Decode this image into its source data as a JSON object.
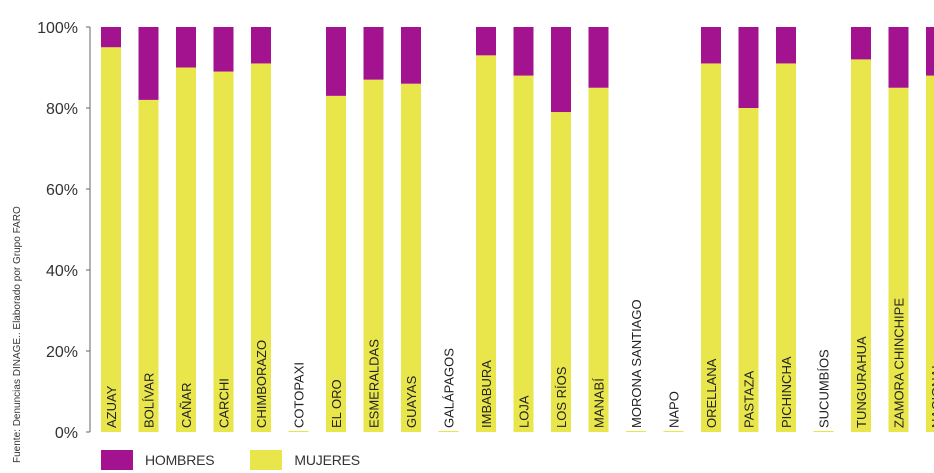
{
  "chart_data": {
    "type": "bar",
    "stacked": true,
    "percent": true,
    "ylim": [
      0,
      100
    ],
    "yticks": [
      "0%",
      "20%",
      "40%",
      "60%",
      "80%",
      "100%"
    ],
    "grid": false,
    "legend_position": "bottom-left",
    "categories": [
      "AZUAY",
      "BOLÍVAR",
      "CAÑAR",
      "CARCHI",
      "CHIMBORAZO",
      "COTOPAXI",
      "EL ORO",
      "ESMERALDAS",
      "GUAYAS",
      "GALÁPAGOS",
      "IMBABURA",
      "LOJA",
      "LOS RÍOS",
      "MANABÍ",
      "MORONA SANTIAGO",
      "NAPO",
      "ORELLANA",
      "PASTAZA",
      "PICHINCHA",
      "SUCUMBÍOS",
      "TUNGURAHUA",
      "ZAMORA CHINCHIPE",
      "NACIONAL"
    ],
    "series": [
      {
        "name": "MUJERES",
        "color": "#e9e64c",
        "values": [
          95,
          82,
          90,
          89,
          91,
          0,
          83,
          87,
          86,
          0,
          93,
          88,
          79,
          85,
          0,
          0,
          91,
          80,
          91,
          0,
          92,
          85,
          88
        ]
      },
      {
        "name": "HOMBRES",
        "color": "#a3138f",
        "values": [
          5,
          18,
          10,
          11,
          9,
          0,
          17,
          13,
          14,
          0,
          7,
          12,
          21,
          15,
          0,
          0,
          9,
          20,
          9,
          0,
          8,
          15,
          12
        ]
      }
    ]
  },
  "source_note": "Fuente: Denuncias DINAGE.. Elaborado por Grupo FARO",
  "legend": {
    "items": [
      {
        "label": "HOMBRES",
        "color": "#a3138f"
      },
      {
        "label": "MUJERES",
        "color": "#e9e64c"
      }
    ]
  }
}
